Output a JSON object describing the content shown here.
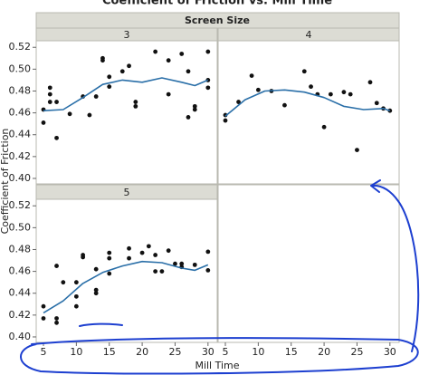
{
  "figure": {
    "title": "Coefficient of Friction vs. Mill Time",
    "facet_label": "Screen Size",
    "y_label": "Coefficient of Friction",
    "x_label": "Mill Time"
  },
  "chart_data": [
    {
      "type": "scatter",
      "title": "3",
      "color": "#111111",
      "fit_color": "#2a6fa8",
      "x": [
        5,
        5,
        6,
        6,
        6,
        7,
        7,
        9,
        11,
        12,
        13,
        14,
        14,
        15,
        15,
        17,
        18,
        19,
        19,
        22,
        24,
        24,
        26,
        27,
        27,
        28,
        28,
        30,
        30,
        30
      ],
      "values": [
        0.451,
        0.463,
        0.477,
        0.483,
        0.47,
        0.437,
        0.47,
        0.459,
        0.475,
        0.458,
        0.475,
        0.508,
        0.51,
        0.493,
        0.484,
        0.498,
        0.503,
        0.47,
        0.466,
        0.516,
        0.508,
        0.477,
        0.514,
        0.456,
        0.498,
        0.466,
        0.463,
        0.483,
        0.516,
        0.49
      ],
      "fit": {
        "x": [
          5,
          8,
          11,
          14,
          17,
          20,
          23,
          26,
          28,
          30
        ],
        "values": [
          0.462,
          0.463,
          0.474,
          0.486,
          0.49,
          0.488,
          0.492,
          0.488,
          0.485,
          0.49
        ]
      },
      "xlim": [
        3.9,
        31.4
      ],
      "ylim": [
        0.395,
        0.526
      ],
      "yticks": [
        {
          "value": 0.4,
          "label": "0.40"
        },
        0.42,
        0.44,
        0.46,
        0.48,
        {
          "value": 0.5,
          "label": "0.50"
        },
        0.52
      ]
    },
    {
      "type": "scatter",
      "title": "4",
      "color": "#111111",
      "fit_color": "#2a6fa8",
      "x": [
        5,
        5,
        7,
        9,
        10,
        12,
        14,
        17,
        18,
        19,
        20,
        21,
        23,
        24,
        25,
        27,
        28,
        29,
        30
      ],
      "values": [
        0.458,
        0.453,
        0.47,
        0.494,
        0.481,
        0.48,
        0.467,
        0.498,
        0.484,
        0.477,
        0.447,
        0.477,
        0.479,
        0.477,
        0.426,
        0.488,
        0.469,
        0.464,
        0.462
      ],
      "fit": {
        "x": [
          5,
          8,
          11,
          14,
          17,
          20,
          23,
          26,
          29,
          30
        ],
        "values": [
          0.457,
          0.472,
          0.48,
          0.481,
          0.479,
          0.474,
          0.466,
          0.463,
          0.464,
          0.462
        ]
      },
      "xlim": [
        3.9,
        31.4
      ],
      "ylim": [
        0.395,
        0.526
      ],
      "xticks": [
        5,
        10,
        15,
        20,
        25,
        30
      ]
    },
    {
      "type": "scatter",
      "title": "5",
      "color": "#111111",
      "fit_color": "#2a6fa8",
      "x": [
        5,
        5,
        7,
        7,
        7,
        8,
        10,
        10,
        10,
        11,
        11,
        13,
        13,
        13,
        15,
        15,
        15,
        18,
        18,
        20,
        21,
        22,
        22,
        23,
        24,
        25,
        26,
        26,
        28,
        30,
        30
      ],
      "values": [
        0.428,
        0.417,
        0.465,
        0.417,
        0.413,
        0.45,
        0.45,
        0.437,
        0.428,
        0.475,
        0.473,
        0.462,
        0.443,
        0.44,
        0.458,
        0.477,
        0.472,
        0.481,
        0.472,
        0.477,
        0.483,
        0.46,
        0.475,
        0.46,
        0.479,
        0.467,
        0.464,
        0.467,
        0.466,
        0.478,
        0.461
      ],
      "fit": {
        "x": [
          5,
          8,
          11,
          14,
          17,
          20,
          23,
          26,
          28,
          30
        ],
        "values": [
          0.422,
          0.433,
          0.449,
          0.459,
          0.465,
          0.469,
          0.468,
          0.463,
          0.461,
          0.466
        ]
      },
      "xlim": [
        3.9,
        31.4
      ],
      "ylim": [
        0.395,
        0.526
      ],
      "yticks": [
        {
          "value": 0.4,
          "label": "0.40"
        },
        0.42,
        0.44,
        0.46,
        0.48,
        {
          "value": 0.5,
          "label": "0.50"
        },
        0.52
      ],
      "xticks": [
        5,
        10,
        15,
        20,
        25,
        30
      ]
    }
  ]
}
